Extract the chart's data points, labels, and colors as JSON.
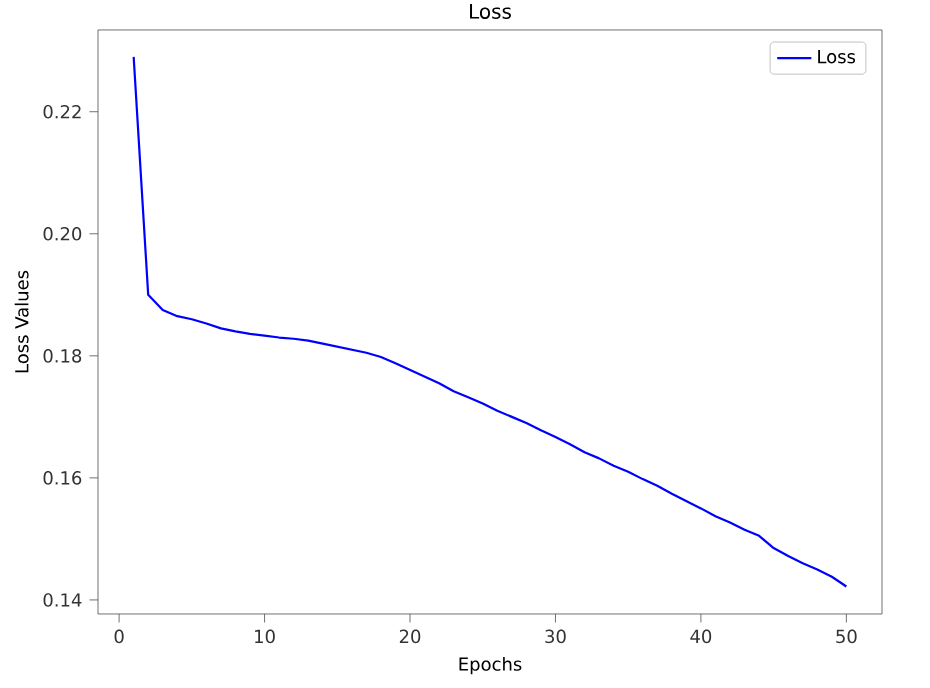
{
  "chart_data": {
    "type": "line",
    "title": "Loss",
    "xlabel": "Epochs",
    "ylabel": "Loss Values",
    "x": [
      1,
      2,
      3,
      4,
      5,
      6,
      7,
      8,
      9,
      10,
      11,
      12,
      13,
      14,
      15,
      16,
      17,
      18,
      19,
      20,
      21,
      22,
      23,
      24,
      25,
      26,
      27,
      28,
      29,
      30,
      31,
      32,
      33,
      34,
      35,
      36,
      37,
      38,
      39,
      40,
      41,
      42,
      43,
      44,
      45,
      46,
      47,
      48,
      49,
      50
    ],
    "series": [
      {
        "name": "Loss",
        "color": "#0000ff",
        "values": [
          0.229,
          0.19,
          0.1875,
          0.1865,
          0.186,
          0.1853,
          0.1845,
          0.184,
          0.1836,
          0.1833,
          0.183,
          0.1828,
          0.1825,
          0.182,
          0.1815,
          0.181,
          0.1805,
          0.1798,
          0.1788,
          0.1777,
          0.1766,
          0.1755,
          0.1742,
          0.1732,
          0.1722,
          0.171,
          0.17,
          0.169,
          0.1678,
          0.1667,
          0.1655,
          0.1642,
          0.1632,
          0.162,
          0.161,
          0.1598,
          0.1587,
          0.1574,
          0.1562,
          0.155,
          0.1537,
          0.1527,
          0.1515,
          0.1505,
          0.1485,
          0.1472,
          0.146,
          0.145,
          0.1438,
          0.1422
        ]
      }
    ],
    "xlim": [
      -1.45,
      52.45
    ],
    "ylim": [
      0.1377,
      0.2334
    ],
    "xticks": [
      0,
      10,
      20,
      30,
      40,
      50
    ],
    "yticks": [
      {
        "value": 0.14,
        "label": "0.14"
      },
      {
        "value": 0.16,
        "label": "0.16"
      },
      {
        "value": 0.18,
        "label": "0.18"
      },
      {
        "value": 0.2,
        "label": "0.20"
      },
      {
        "value": 0.22,
        "label": "0.22"
      }
    ],
    "legend": "top right",
    "grid": false,
    "marker": "none",
    "line_style": "solid"
  }
}
